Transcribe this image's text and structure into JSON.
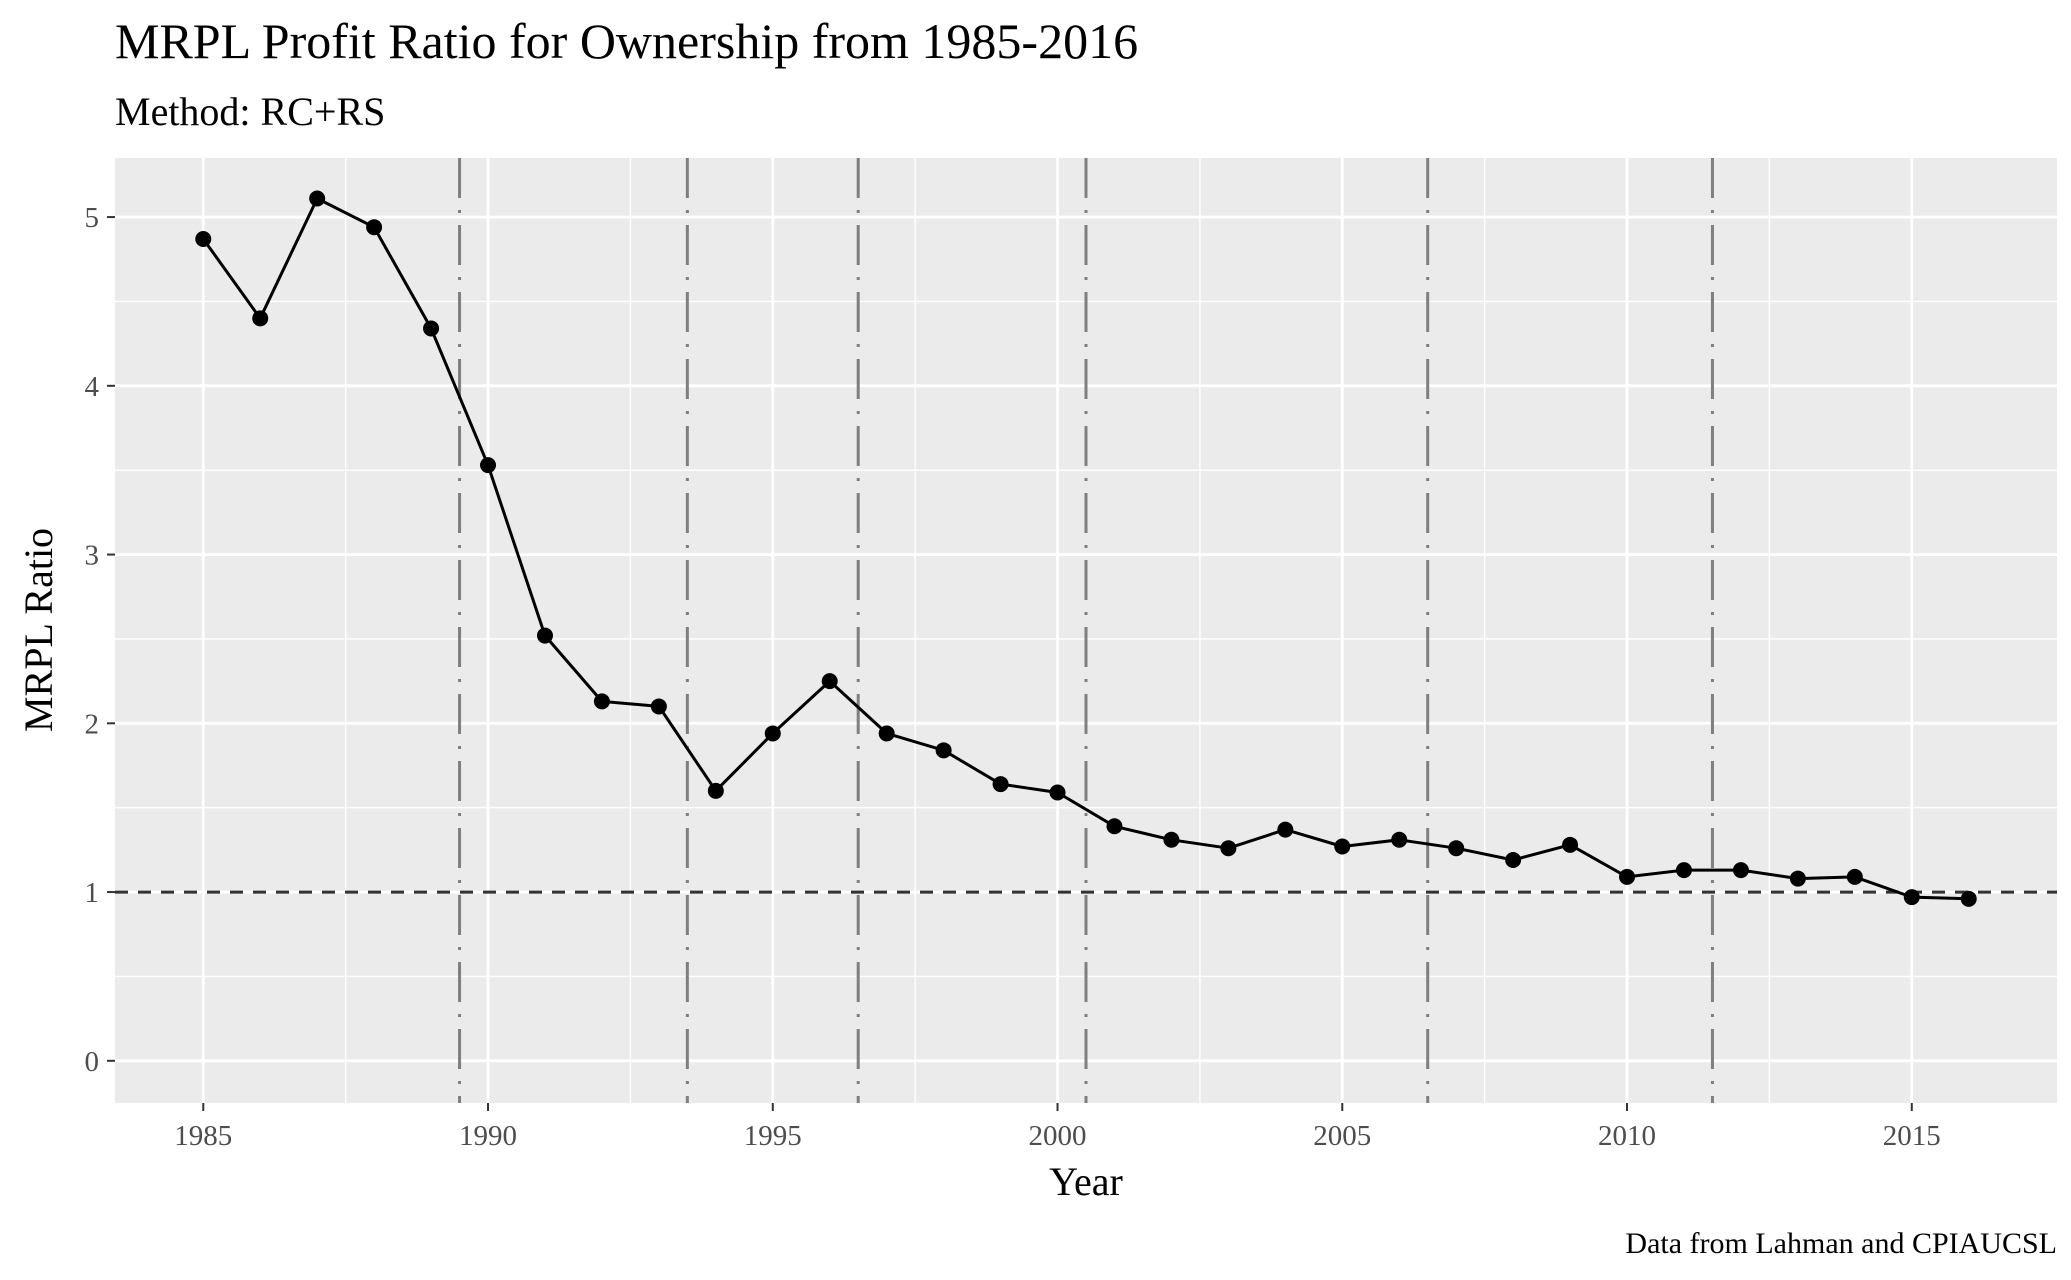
{
  "chart_data": {
    "type": "line",
    "title": "MRPL Profit Ratio for Ownership from 1985-2016",
    "subtitle": "Method: RC+RS",
    "xlabel": "Year",
    "ylabel": "MRPL Ratio",
    "caption": "Data from Lahman and CPIAUCSL",
    "xlim": [
      1983.45,
      2017.55
    ],
    "ylim": [
      -0.25,
      5.35
    ],
    "x_ticks": [
      1985,
      1990,
      1995,
      2000,
      2005,
      2010,
      2015
    ],
    "y_ticks": [
      0,
      1,
      2,
      3,
      4,
      5
    ],
    "grid": true,
    "legend": "none",
    "reference_line": {
      "y": 1,
      "style": "dashed"
    },
    "vertical_lines": {
      "x": [
        1989.5,
        1993.5,
        1996.5,
        2000.5,
        2006.5,
        2011.5
      ],
      "style": "longdash-dot"
    },
    "series": [
      {
        "x": [
          1985,
          1986,
          1987,
          1988,
          1989,
          1990,
          1991,
          1992,
          1993,
          1994,
          1995,
          1996,
          1997,
          1998,
          1999,
          2000,
          2001,
          2002,
          2003,
          2004,
          2005,
          2006,
          2007,
          2008,
          2009,
          2010,
          2011,
          2012,
          2013,
          2014,
          2015,
          2016
        ],
        "values": [
          4.87,
          4.4,
          5.11,
          4.94,
          4.34,
          3.53,
          2.52,
          2.13,
          2.1,
          1.6,
          1.94,
          2.25,
          1.94,
          1.84,
          1.64,
          1.59,
          1.39,
          1.31,
          1.26,
          1.37,
          1.27,
          1.31,
          1.26,
          1.19,
          1.28,
          1.09,
          1.13,
          1.13,
          1.08,
          1.09,
          0.97,
          0.96
        ]
      }
    ],
    "colors": {
      "panel_background": "#ebebeb",
      "grid": "#ffffff",
      "line": "#000000",
      "vertical_lines": "#7f7f7f",
      "reference_line": "#333333",
      "tick_text": "#4d4d4d"
    }
  }
}
